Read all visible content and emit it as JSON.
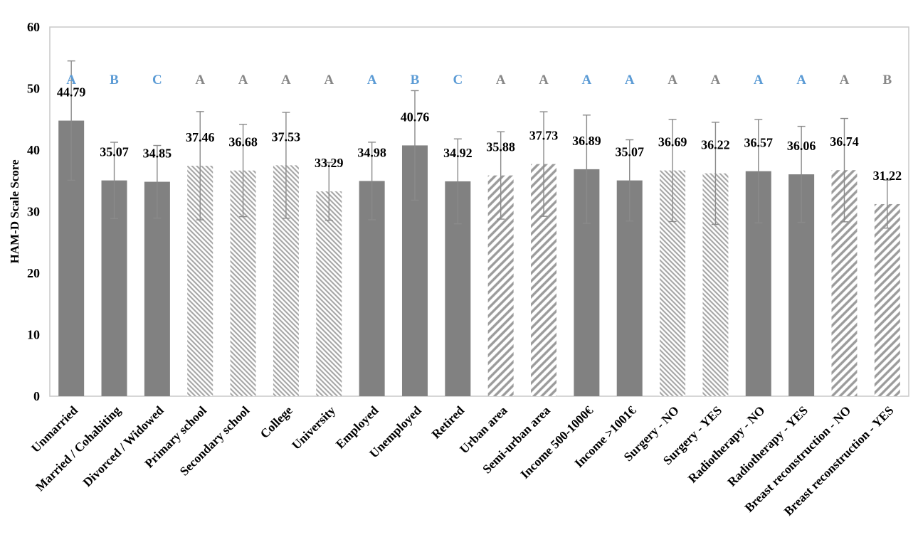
{
  "chart_data": {
    "type": "bar",
    "title": "",
    "xlabel": "",
    "ylabel": "HAM-D Scale Score",
    "ylim": [
      0,
      60
    ],
    "yticks": [
      60,
      50,
      40,
      30,
      20,
      10,
      0
    ],
    "grid": false,
    "legend": null,
    "palette": {
      "bar_fill": "#818181",
      "hatch_line_fine": "#a5a5a5",
      "hatch_line_wide": "#9b9b9b",
      "error_bar": "#8a8a8a",
      "letter_blue": "#5b9bd5",
      "letter_gray": "#878787",
      "value_label": "#000000",
      "tick_label": "#000000",
      "axis_border": "#c9c9c9"
    },
    "bars": [
      {
        "label": "Unmarried",
        "value": 44.79,
        "display": "44.79",
        "error": 9.7,
        "style": "solid",
        "letter": "A",
        "letter_color": "blue"
      },
      {
        "label": "Married / Cohabiting",
        "value": 35.07,
        "display": "35.07",
        "error": 6.2,
        "style": "solid",
        "letter": "B",
        "letter_color": "blue"
      },
      {
        "label": "Divorced / Widowed",
        "value": 34.85,
        "display": "34.85",
        "error": 5.9,
        "style": "solid",
        "letter": "C",
        "letter_color": "blue"
      },
      {
        "label": "Primary school",
        "value": 37.46,
        "display": "37.46",
        "error": 8.8,
        "style": "hatch_fine_down",
        "letter": "A",
        "letter_color": "gray"
      },
      {
        "label": "Secondary school",
        "value": 36.68,
        "display": "36.68",
        "error": 7.5,
        "style": "hatch_fine_down",
        "letter": "A",
        "letter_color": "gray"
      },
      {
        "label": "College",
        "value": 37.53,
        "display": "37.53",
        "error": 8.6,
        "style": "hatch_fine_down",
        "letter": "A",
        "letter_color": "gray"
      },
      {
        "label": "University",
        "value": 33.29,
        "display": "33.29",
        "error": 4.7,
        "style": "hatch_fine_down",
        "letter": "A",
        "letter_color": "gray"
      },
      {
        "label": "Employed",
        "value": 34.98,
        "display": "34.98",
        "error": 6.3,
        "style": "solid",
        "letter": "A",
        "letter_color": "blue"
      },
      {
        "label": "Unemployed",
        "value": 40.76,
        "display": "40.76",
        "error": 8.9,
        "style": "solid",
        "letter": "B",
        "letter_color": "blue"
      },
      {
        "label": "Retired",
        "value": 34.92,
        "display": "34.92",
        "error": 6.9,
        "style": "solid",
        "letter": "C",
        "letter_color": "blue"
      },
      {
        "label": "Urban area",
        "value": 35.88,
        "display": "35.88",
        "error": 7.1,
        "style": "hatch_wide_up",
        "letter": "A",
        "letter_color": "gray"
      },
      {
        "label": "Semi-urban area",
        "value": 37.73,
        "display": "37.73",
        "error": 8.5,
        "style": "hatch_wide_up",
        "letter": "A",
        "letter_color": "gray"
      },
      {
        "label": "Income 500-1000€",
        "value": 36.89,
        "display": "36.89",
        "error": 8.8,
        "style": "solid",
        "letter": "A",
        "letter_color": "blue"
      },
      {
        "label": "Income >1001€",
        "value": 35.07,
        "display": "35.07",
        "error": 6.6,
        "style": "solid",
        "letter": "A",
        "letter_color": "blue"
      },
      {
        "label": "Surgery - NO",
        "value": 36.69,
        "display": "36.69",
        "error": 8.3,
        "style": "hatch_fine_down",
        "letter": "A",
        "letter_color": "gray"
      },
      {
        "label": "Surgery - YES",
        "value": 36.22,
        "display": "36.22",
        "error": 8.3,
        "style": "hatch_fine_down",
        "letter": "A",
        "letter_color": "gray"
      },
      {
        "label": "Radiotherapy - NO",
        "value": 36.57,
        "display": "36.57",
        "error": 8.4,
        "style": "solid",
        "letter": "A",
        "letter_color": "blue"
      },
      {
        "label": "Radiotherapy - YES",
        "value": 36.06,
        "display": "36.06",
        "error": 7.8,
        "style": "solid",
        "letter": "A",
        "letter_color": "blue"
      },
      {
        "label": "Breast reconstruction - NO",
        "value": 36.74,
        "display": "36.74",
        "error": 8.4,
        "style": "hatch_wide_up",
        "letter": "A",
        "letter_color": "gray"
      },
      {
        "label": "Breast reconstruction - YES",
        "value": 31.22,
        "display": "31.22",
        "error": 3.9,
        "style": "hatch_wide_up",
        "letter": "B",
        "letter_color": "gray"
      }
    ]
  }
}
